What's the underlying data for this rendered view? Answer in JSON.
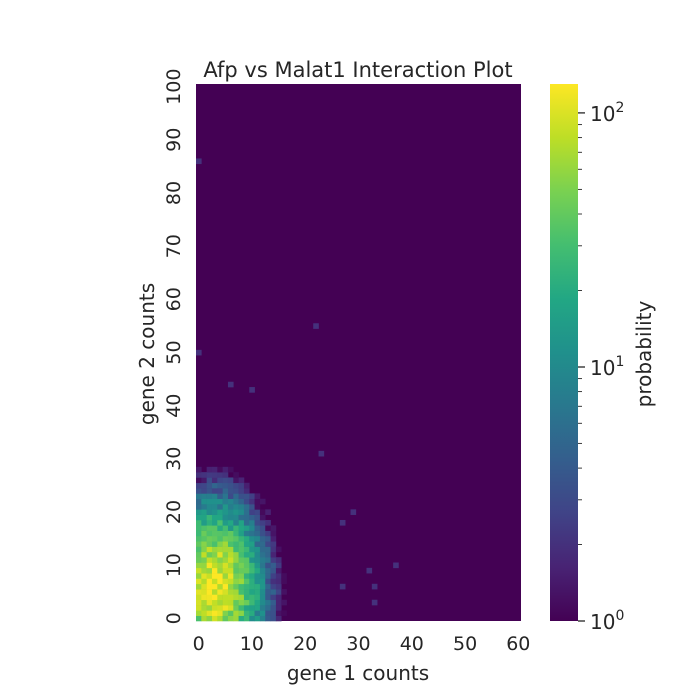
{
  "chart_data": {
    "type": "heatmap",
    "title": "Afp vs Malat1 Interaction Plot",
    "xlabel": "gene 1 counts",
    "ylabel": "gene 2 counts",
    "xlim": [
      0,
      60
    ],
    "ylim": [
      0,
      100
    ],
    "x_ticks": [
      "0",
      "10",
      "20",
      "30",
      "40",
      "50",
      "60"
    ],
    "y_ticks": [
      "0",
      "10",
      "20",
      "30",
      "40",
      "50",
      "60",
      "70",
      "80",
      "90",
      "100"
    ],
    "colorbar": {
      "label": "probability",
      "scale": "log",
      "range": [
        1,
        130
      ],
      "colormap": "viridis",
      "ticks": [
        {
          "base": "10",
          "exp": "0",
          "value": 1
        },
        {
          "base": "10",
          "exp": "1",
          "value": 10
        },
        {
          "base": "10",
          "exp": "2",
          "value": 100
        }
      ]
    },
    "peak": {
      "x": 3,
      "y": 6,
      "value": 130
    },
    "background_value": 1,
    "isolated_points": [
      {
        "x": 0,
        "y": 86,
        "value": 2
      },
      {
        "x": 22,
        "y": 55,
        "value": 2
      },
      {
        "x": 0,
        "y": 50,
        "value": 2
      },
      {
        "x": 10,
        "y": 43,
        "value": 2
      },
      {
        "x": 6,
        "y": 44,
        "value": 2
      },
      {
        "x": 37,
        "y": 10,
        "value": 2
      },
      {
        "x": 32,
        "y": 9,
        "value": 2
      },
      {
        "x": 33,
        "y": 6,
        "value": 2
      },
      {
        "x": 33,
        "y": 3,
        "value": 2
      },
      {
        "x": 27,
        "y": 6,
        "value": 2
      },
      {
        "x": 23,
        "y": 31,
        "value": 2
      },
      {
        "x": 27,
        "y": 18,
        "value": 2
      },
      {
        "x": 29,
        "y": 20,
        "value": 2
      }
    ]
  }
}
